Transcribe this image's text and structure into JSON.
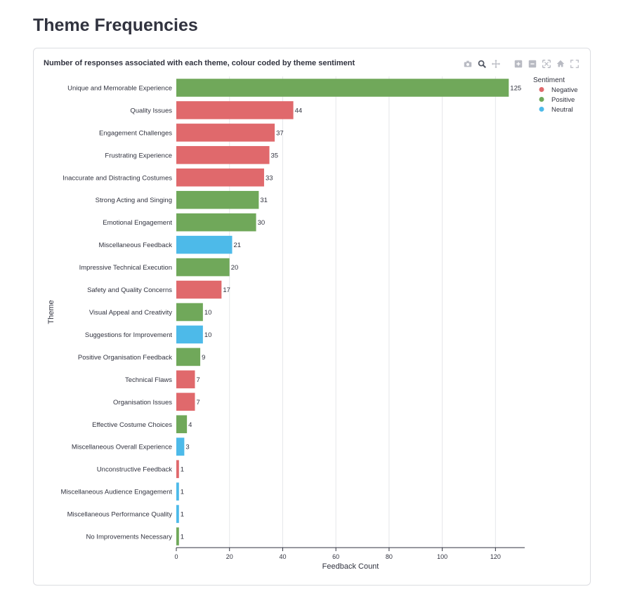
{
  "page": {
    "title": "Theme Frequencies"
  },
  "modebar": {
    "groups": [
      [
        "camera-icon",
        "zoom-icon",
        "pan-icon"
      ],
      [
        "zoom-in-icon",
        "zoom-out-icon",
        "autoscale-icon",
        "reset-axes-icon",
        "fullscreen-icon"
      ]
    ]
  },
  "chart_data": {
    "type": "bar",
    "orientation": "horizontal",
    "title": "Number of responses associated with each theme, colour coded by theme sentiment",
    "xlabel": "Feedback Count",
    "ylabel": "Theme",
    "xlim": [
      0,
      131
    ],
    "xticks": [
      0,
      20,
      40,
      60,
      80,
      100,
      120
    ],
    "grid": true,
    "legend_title": "Sentiment",
    "legend_position": "top-right",
    "colors": {
      "Negative": "#e0696c",
      "Positive": "#70a85a",
      "Neutral": "#4dbae9"
    },
    "legend": [
      "Negative",
      "Positive",
      "Neutral"
    ],
    "categories": [
      "Unique and Memorable Experience",
      "Quality Issues",
      "Engagement Challenges",
      "Frustrating Experience",
      "Inaccurate and Distracting Costumes",
      "Strong Acting and Singing",
      "Emotional Engagement",
      "Miscellaneous Feedback",
      "Impressive Technical Execution",
      "Safety and Quality Concerns",
      "Visual Appeal and Creativity",
      "Suggestions for Improvement",
      "Positive Organisation Feedback",
      "Technical Flaws",
      "Organisation Issues",
      "Effective Costume Choices",
      "Miscellaneous Overall Experience",
      "Unconstructive Feedback",
      "Miscellaneous Audience Engagement",
      "Miscellaneous Performance Quality",
      "No Improvements Necessary"
    ],
    "values": [
      125,
      44,
      37,
      35,
      33,
      31,
      30,
      21,
      20,
      17,
      10,
      10,
      9,
      7,
      7,
      4,
      3,
      1,
      1,
      1,
      1
    ],
    "sentiments": [
      "Positive",
      "Negative",
      "Negative",
      "Negative",
      "Negative",
      "Positive",
      "Positive",
      "Neutral",
      "Positive",
      "Negative",
      "Positive",
      "Neutral",
      "Positive",
      "Negative",
      "Negative",
      "Positive",
      "Neutral",
      "Negative",
      "Neutral",
      "Neutral",
      "Positive"
    ]
  }
}
